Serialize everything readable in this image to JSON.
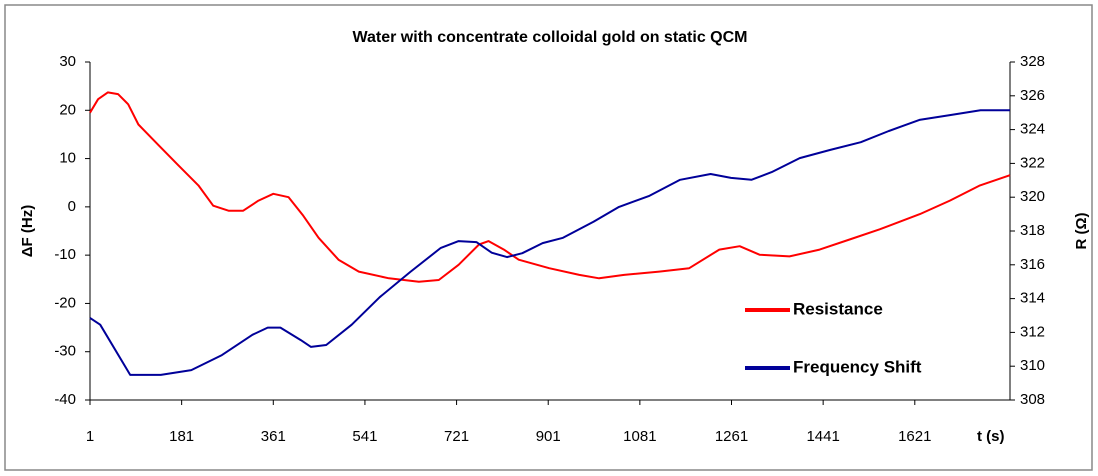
{
  "chart_data": {
    "type": "line",
    "title": "Water with concentrate colloidal gold on static QCM",
    "ylabel": "ΔF (Hz)",
    "y2label": "R (Ω)",
    "xlabel": "t (s)",
    "xlim": [
      1,
      1808
    ],
    "xticks": [
      1,
      181,
      361,
      541,
      721,
      901,
      1081,
      1261,
      1441,
      1621
    ],
    "ylim": [
      -40,
      30
    ],
    "yticks": [
      -40,
      -30,
      -20,
      -10,
      0,
      10,
      20,
      30
    ],
    "y2lim": [
      308,
      328
    ],
    "y2ticks": [
      308,
      310,
      312,
      314,
      316,
      318,
      320,
      322,
      324,
      326,
      328
    ],
    "legend": "lower right",
    "series": [
      {
        "name": "Resistance",
        "color": "#ff0000",
        "axis": "y2",
        "x": [
          1,
          17,
          36,
          56,
          76,
          96,
          135,
          174,
          214,
          243,
          273,
          302,
          332,
          361,
          391,
          420,
          450,
          489,
          529,
          588,
          647,
          686,
          725,
          765,
          784,
          814,
          843,
          903,
          962,
          1001,
          1050,
          1119,
          1178,
          1237,
          1277,
          1316,
          1375,
          1434,
          1493,
          1552,
          1631,
          1690,
          1749,
          1808
        ],
        "values": [
          325.0,
          325.8,
          326.2,
          326.1,
          325.5,
          324.3,
          323.1,
          321.9,
          320.7,
          319.5,
          319.2,
          319.2,
          319.8,
          320.2,
          320.0,
          318.9,
          317.6,
          316.3,
          315.6,
          315.2,
          315.0,
          315.1,
          316.0,
          317.2,
          317.4,
          316.9,
          316.3,
          315.8,
          315.4,
          315.2,
          315.4,
          315.6,
          315.8,
          316.9,
          317.1,
          316.6,
          316.5,
          316.9,
          317.5,
          318.1,
          319.0,
          319.8,
          320.7,
          321.3
        ]
      },
      {
        "name": "Frequency Shift",
        "color": "#000099",
        "x": [
          1,
          21,
          80,
          140,
          200,
          260,
          320,
          350,
          375,
          415,
          435,
          465,
          515,
          570,
          630,
          690,
          725,
          760,
          790,
          820,
          850,
          890,
          930,
          990,
          1040,
          1100,
          1160,
          1220,
          1260,
          1300,
          1340,
          1395,
          1455,
          1515,
          1570,
          1630,
          1690,
          1750,
          1808
        ],
        "values": [
          -23,
          -24.4,
          -34.8,
          -34.8,
          -33.8,
          -30.7,
          -26.5,
          -25,
          -25,
          -27.6,
          -29,
          -28.6,
          -24.4,
          -18.7,
          -13.5,
          -8.5,
          -7.1,
          -7.3,
          -9.5,
          -10.4,
          -9.6,
          -7.5,
          -6.4,
          -3.1,
          0,
          2.3,
          5.6,
          6.8,
          6,
          5.6,
          7.2,
          10.1,
          11.8,
          13.4,
          15.7,
          18,
          19,
          20,
          20
        ]
      }
    ]
  }
}
